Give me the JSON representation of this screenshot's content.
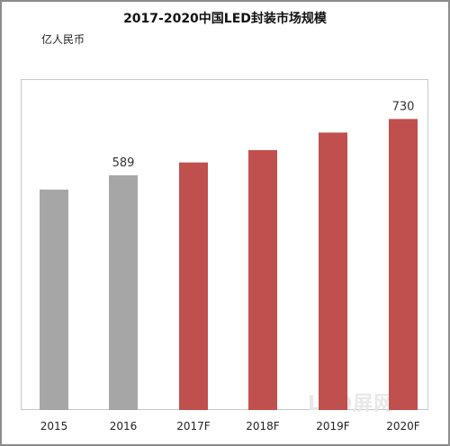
{
  "chart_data": {
    "type": "bar",
    "title": "2017-2020中国LED封装市场规模",
    "unit_label": "亿人民币",
    "categories": [
      "2015",
      "2016",
      "2017F",
      "2018F",
      "2019F",
      "2020F"
    ],
    "values": [
      553,
      589,
      621,
      652,
      696,
      730
    ],
    "data_labels": [
      "",
      "589",
      "",
      "",
      "",
      "730"
    ],
    "colors": [
      "#a6a6a6",
      "#a6a6a6",
      "#c0504d",
      "#c0504d",
      "#c0504d",
      "#c0504d"
    ],
    "ylim": [
      0,
      830
    ],
    "grid": false,
    "legend": "none"
  },
  "watermark": "LED屏网"
}
